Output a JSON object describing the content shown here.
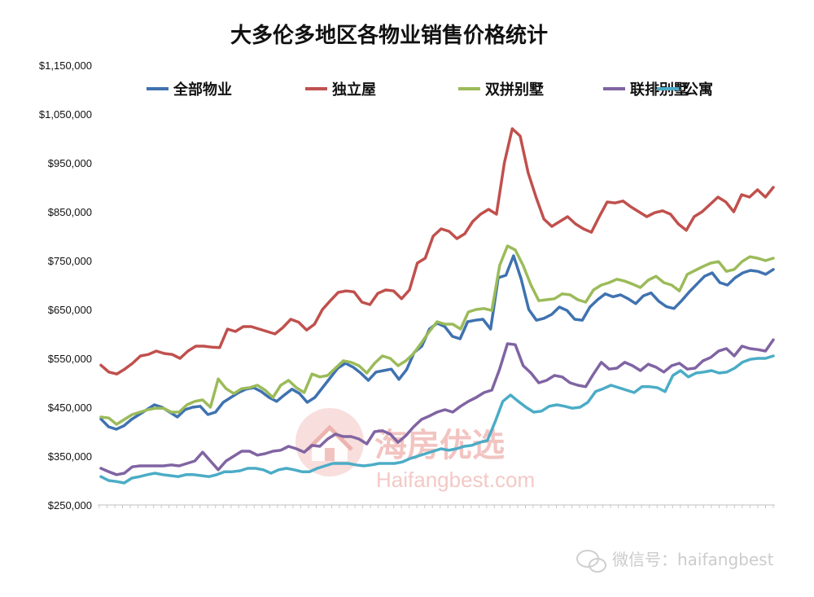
{
  "chart_data": {
    "type": "line",
    "title": "大多伦多地区各物业销售价格统计",
    "xlabel": "",
    "ylabel": "",
    "ylim": [
      250000,
      1150000
    ],
    "yticks": [
      {
        "value": 250000,
        "label": "$250,000"
      },
      {
        "value": 350000,
        "label": "$350,000"
      },
      {
        "value": 450000,
        "label": "$450,000"
      },
      {
        "value": 550000,
        "label": "$550,000"
      },
      {
        "value": 650000,
        "label": "$650,000"
      },
      {
        "value": 750000,
        "label": "$750,000"
      },
      {
        "value": 850000,
        "label": "$850,000"
      },
      {
        "value": 950000,
        "label": "$950,000"
      },
      {
        "value": 1050000,
        "label": "$1,050,000"
      },
      {
        "value": 1150000,
        "label": "$1,150,000"
      }
    ],
    "grid": false,
    "legend_position": "top",
    "series": [
      {
        "name": "全部物业",
        "color": "#3f72b0",
        "values": [
          426000,
          410000,
          405000,
          412000,
          425000,
          435000,
          445000,
          455000,
          450000,
          440000,
          430000,
          445000,
          450000,
          452000,
          435000,
          440000,
          460000,
          470000,
          480000,
          487000,
          490000,
          482000,
          470000,
          462000,
          475000,
          487000,
          478000,
          460000,
          470000,
          490000,
          510000,
          530000,
          540000,
          532000,
          520000,
          505000,
          522000,
          525000,
          528000,
          507000,
          527000,
          562000,
          575000,
          610000,
          622000,
          615000,
          595000,
          590000,
          625000,
          628000,
          630000,
          610000,
          715000,
          720000,
          760000,
          712000,
          650000,
          628000,
          632000,
          640000,
          655000,
          648000,
          630000,
          628000,
          655000,
          670000,
          682000,
          676000,
          680000,
          672000,
          662000,
          678000,
          684000,
          667000,
          656000,
          652000,
          668000,
          686000,
          702000,
          718000,
          725000,
          705000,
          700000,
          715000,
          725000,
          730000,
          728000,
          722000,
          732000
        ]
      },
      {
        "name": "独立屋",
        "color": "#c0504d",
        "values": [
          536000,
          522000,
          518000,
          528000,
          540000,
          555000,
          558000,
          565000,
          560000,
          558000,
          550000,
          565000,
          575000,
          575000,
          573000,
          572000,
          610000,
          605000,
          615000,
          615000,
          610000,
          605000,
          600000,
          613000,
          630000,
          624000,
          608000,
          620000,
          650000,
          668000,
          685000,
          688000,
          686000,
          665000,
          660000,
          683000,
          690000,
          688000,
          672000,
          690000,
          745000,
          755000,
          800000,
          815000,
          810000,
          795000,
          805000,
          830000,
          845000,
          855000,
          845000,
          950000,
          1020000,
          1005000,
          930000,
          880000,
          835000,
          820000,
          830000,
          840000,
          825000,
          815000,
          808000,
          840000,
          870000,
          868000,
          872000,
          860000,
          850000,
          840000,
          848000,
          852000,
          845000,
          825000,
          812000,
          840000,
          850000,
          865000,
          880000,
          870000,
          850000,
          885000,
          880000,
          895000,
          880000,
          900000
        ]
      },
      {
        "name": "双拼别墅",
        "color": "#9bbb59",
        "values": [
          430000,
          428000,
          415000,
          425000,
          435000,
          440000,
          445000,
          448000,
          448000,
          440000,
          440000,
          455000,
          462000,
          465000,
          450000,
          508000,
          488000,
          478000,
          488000,
          490000,
          495000,
          485000,
          470000,
          495000,
          505000,
          490000,
          480000,
          518000,
          512000,
          515000,
          530000,
          545000,
          542000,
          535000,
          520000,
          540000,
          555000,
          550000,
          535000,
          545000,
          560000,
          582000,
          605000,
          625000,
          620000,
          620000,
          610000,
          645000,
          650000,
          652000,
          648000,
          740000,
          780000,
          772000,
          740000,
          700000,
          668000,
          670000,
          672000,
          682000,
          680000,
          670000,
          665000,
          690000,
          700000,
          705000,
          712000,
          708000,
          702000,
          695000,
          710000,
          718000,
          705000,
          700000,
          688000,
          722000,
          730000,
          738000,
          745000,
          748000,
          728000,
          732000,
          748000,
          758000,
          755000,
          750000,
          755000
        ]
      },
      {
        "name": "联排别墅",
        "color": "#8064a2",
        "values": [
          325000,
          318000,
          312000,
          315000,
          328000,
          330000,
          330000,
          330000,
          330000,
          332000,
          330000,
          335000,
          340000,
          358000,
          340000,
          322000,
          340000,
          350000,
          360000,
          360000,
          352000,
          355000,
          360000,
          362000,
          370000,
          365000,
          358000,
          372000,
          370000,
          385000,
          395000,
          390000,
          390000,
          385000,
          375000,
          400000,
          402000,
          395000,
          378000,
          392000,
          410000,
          425000,
          432000,
          440000,
          445000,
          440000,
          452000,
          462000,
          470000,
          480000,
          485000,
          528000,
          580000,
          578000,
          535000,
          520000,
          500000,
          505000,
          515000,
          512000,
          500000,
          495000,
          492000,
          518000,
          542000,
          528000,
          530000,
          542000,
          535000,
          525000,
          538000,
          532000,
          522000,
          535000,
          540000,
          528000,
          530000,
          545000,
          552000,
          565000,
          570000,
          555000,
          575000,
          570000,
          568000,
          565000,
          588000
        ]
      },
      {
        "name": "公寓",
        "color": "#4bacc6",
        "values": [
          308000,
          300000,
          298000,
          295000,
          305000,
          308000,
          312000,
          315000,
          312000,
          310000,
          308000,
          312000,
          312000,
          310000,
          308000,
          312000,
          318000,
          318000,
          320000,
          325000,
          325000,
          322000,
          315000,
          322000,
          325000,
          322000,
          318000,
          318000,
          325000,
          330000,
          335000,
          335000,
          335000,
          332000,
          330000,
          332000,
          335000,
          335000,
          335000,
          338000,
          345000,
          350000,
          355000,
          360000,
          365000,
          362000,
          365000,
          370000,
          372000,
          378000,
          382000,
          420000,
          462000,
          475000,
          462000,
          450000,
          440000,
          442000,
          452000,
          455000,
          452000,
          448000,
          450000,
          460000,
          482000,
          488000,
          495000,
          490000,
          485000,
          480000,
          492000,
          492000,
          490000,
          482000,
          515000,
          525000,
          512000,
          520000,
          522000,
          525000,
          520000,
          522000,
          530000,
          542000,
          548000,
          550000,
          550000,
          555000
        ]
      }
    ]
  },
  "watermark": {
    "logo_text": "海房优选",
    "site_text": "Haifangbest.com"
  },
  "wechat_mark": {
    "text": "微信号：haifangbest"
  },
  "icons": {
    "watermark_logo": "house-logo-icon",
    "wechat_logo": "wechat-icon"
  }
}
